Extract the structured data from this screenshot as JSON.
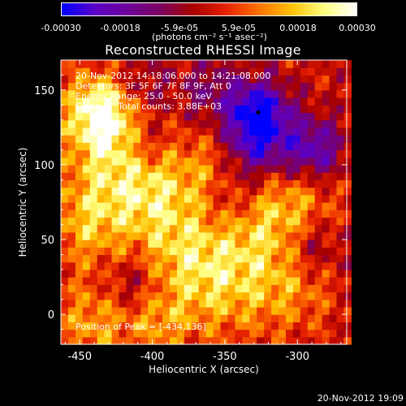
{
  "colorbar": {
    "ticks": [
      "-0.00030",
      "-0.00018",
      "-5.9e-05",
      "5.9e-05",
      "0.00018",
      "0.00030"
    ],
    "units": "(photons cm⁻² s⁻¹ asec⁻²)",
    "stops": [
      "#0000ff",
      "#5a00c8",
      "#6e009a",
      "#7a0060",
      "#a80000",
      "#e62000",
      "#ff7000",
      "#ffc000",
      "#ffff80",
      "#ffffff"
    ]
  },
  "chart_data": {
    "type": "heatmap",
    "title": "Reconstructed RHESSI Image",
    "xlabel": "Heliocentric X (arcsec)",
    "ylabel": "Heliocentric Y (arcsec)",
    "xlim": [
      -463,
      -266
    ],
    "ylim": [
      -20,
      170
    ],
    "xticks": [
      -450,
      -400,
      -350,
      -300
    ],
    "yticks": [
      0,
      50,
      100,
      150
    ],
    "color_range": [
      -0.0003,
      0.0003
    ],
    "annotations": [
      "20-Nov-2012 14:18:06.000 to 14:21:08.000",
      "Detectors: 3F 5F 6F 7F 8F 9F, Att 0",
      "Energy Range: 25.0 - 50.0 keV",
      "Clean      Total counts: 3.88E+03"
    ],
    "peak_label": "Position of Peak = [-434,136]",
    "peak": [
      -434,
      136
    ],
    "min_marker": [
      -327,
      135
    ],
    "regions": [
      {
        "x": -434,
        "y": 136,
        "r": 18,
        "v": 0.0003
      },
      {
        "x": -425,
        "y": 100,
        "r": 25,
        "v": 0.00016
      },
      {
        "x": -445,
        "y": 60,
        "r": 20,
        "v": 0.00014
      },
      {
        "x": -395,
        "y": 75,
        "r": 22,
        "v": 0.00015
      },
      {
        "x": -380,
        "y": 40,
        "r": 20,
        "v": 0.0001
      },
      {
        "x": -355,
        "y": 20,
        "r": 25,
        "v": 0.00016
      },
      {
        "x": -330,
        "y": 60,
        "r": 22,
        "v": 0.00013
      },
      {
        "x": -300,
        "y": 75,
        "r": 20,
        "v": 0.00012
      },
      {
        "x": -305,
        "y": 20,
        "r": 22,
        "v": 0.00012
      },
      {
        "x": -440,
        "y": -5,
        "r": 20,
        "v": 0.00014
      },
      {
        "x": -395,
        "y": -5,
        "r": 15,
        "v": 0.00011
      },
      {
        "x": -360,
        "y": 100,
        "r": 18,
        "v": 9e-05
      },
      {
        "x": -327,
        "y": 135,
        "r": 15,
        "v": -0.0003
      },
      {
        "x": -290,
        "y": 110,
        "r": 15,
        "v": -0.00022
      },
      {
        "x": -330,
        "y": 110,
        "r": 16,
        "v": -0.00018
      },
      {
        "x": -410,
        "y": 150,
        "r": 15,
        "v": -0.00012
      },
      {
        "x": -360,
        "y": 150,
        "r": 15,
        "v": -0.0001
      },
      {
        "x": -405,
        "y": 115,
        "r": 12,
        "v": -0.0001
      },
      {
        "x": -345,
        "y": 75,
        "r": 14,
        "v": -0.0001
      },
      {
        "x": -290,
        "y": 45,
        "r": 15,
        "v": -0.00012
      },
      {
        "x": -415,
        "y": 20,
        "r": 14,
        "v": -9e-05
      }
    ]
  },
  "timestamp": "20-Nov-2012 19:09"
}
